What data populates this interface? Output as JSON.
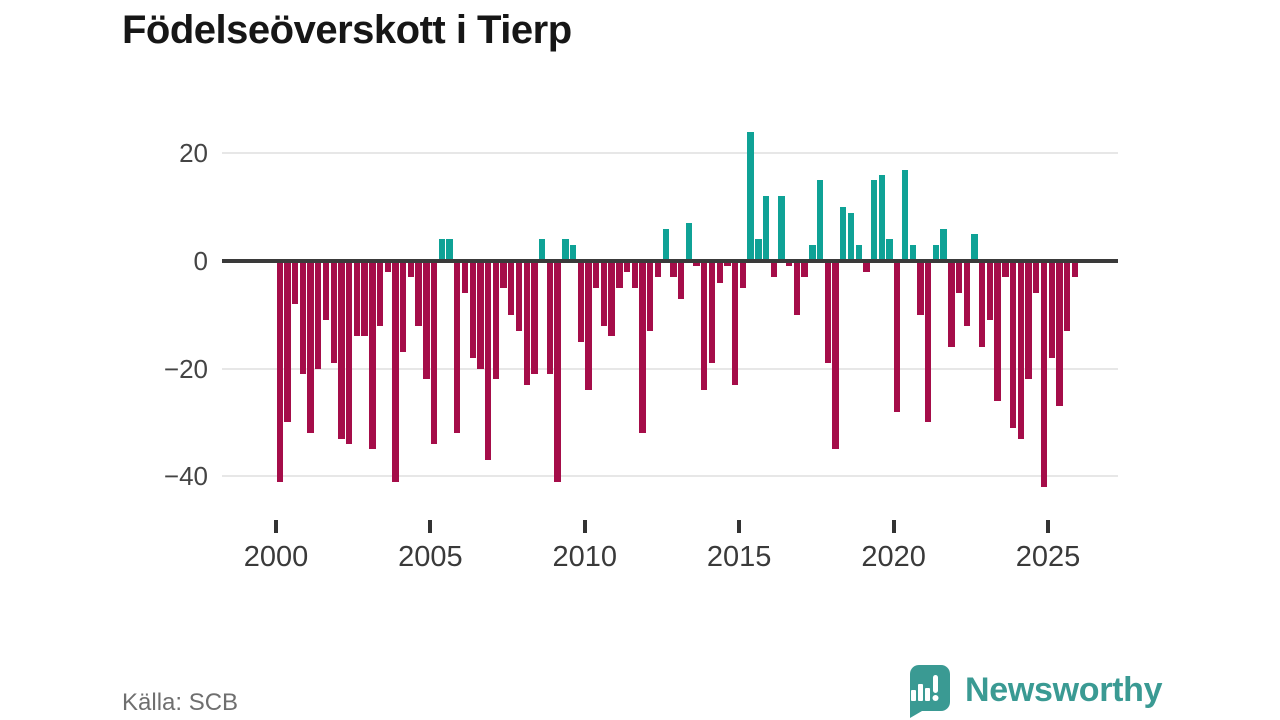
{
  "title": "Födelseöverskott i Tierp",
  "source": "Källa: SCB",
  "brand": {
    "name": "Newsworthy",
    "color": "#3a9a93"
  },
  "colors": {
    "positive_bar": "#0fa296",
    "negative_bar": "#a50d49",
    "zero_axis": "#3a3a3a",
    "gridline": "#e7e7e7",
    "y_label": "#444444",
    "x_label": "#3a3a3a",
    "source_text": "#6f6f6f"
  },
  "chart_data": {
    "type": "bar",
    "title": "Födelseöverskott i Tierp",
    "xlabel": "",
    "ylabel": "",
    "x_unit": "quarter",
    "x_start": "2000 Q1",
    "x_end": "2025 Q4",
    "x_tick_labels": [
      "2000",
      "2005",
      "2010",
      "2015",
      "2020",
      "2025"
    ],
    "y_ticks": [
      20,
      0,
      -20,
      -40
    ],
    "y_tick_labels": [
      "20",
      "0",
      "−20",
      "−40"
    ],
    "ylim": [
      -44,
      25
    ],
    "grid": "horizontal",
    "legend": "none",
    "series": [
      {
        "name": "Födelseöverskott",
        "values": [
          -41,
          -30,
          -8,
          -21,
          -32,
          -20,
          -11,
          -19,
          -33,
          -34,
          -14,
          -14,
          -35,
          -12,
          -2,
          -41,
          -17,
          -3,
          -12,
          -22,
          -34,
          4,
          4,
          -32,
          -6,
          -18,
          -20,
          -37,
          -22,
          -5,
          -10,
          -13,
          -23,
          -21,
          4,
          -21,
          -41,
          4,
          3,
          -15,
          -24,
          -5,
          -12,
          -14,
          -5,
          -2,
          -5,
          -32,
          -13,
          -3,
          6,
          -3,
          -7,
          7,
          -1,
          -24,
          -19,
          -4,
          -1,
          -23,
          -5,
          24,
          4,
          12,
          -3,
          12,
          -1,
          -10,
          -3,
          3,
          15,
          -19,
          -35,
          10,
          9,
          3,
          -2,
          15,
          16,
          4,
          -28,
          17,
          3,
          -10,
          -30,
          3,
          6,
          -16,
          -6,
          -12,
          5,
          -16,
          -11,
          -26,
          -3,
          -31,
          -33,
          -22,
          -6,
          -42,
          -18,
          -27,
          -13,
          -3
        ]
      }
    ]
  }
}
